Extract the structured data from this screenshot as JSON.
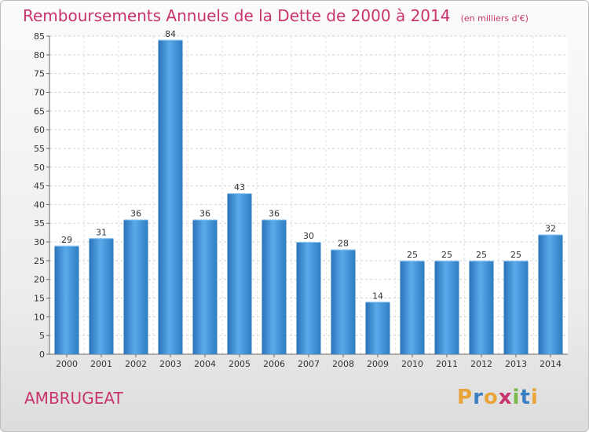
{
  "chart_data": {
    "type": "bar",
    "title": "Remboursements Annuels de la Dette de 2000 à 2014",
    "unit_note": "(en milliers d'€)",
    "categories": [
      "2000",
      "2001",
      "2002",
      "2003",
      "2004",
      "2005",
      "2006",
      "2007",
      "2008",
      "2009",
      "2010",
      "2011",
      "2012",
      "2013",
      "2014"
    ],
    "values": [
      29,
      31,
      36,
      84,
      36,
      43,
      36,
      30,
      28,
      14,
      25,
      25,
      25,
      25,
      32
    ],
    "ylim": [
      0,
      85
    ],
    "yticks": [
      0,
      5,
      10,
      15,
      20,
      25,
      30,
      35,
      40,
      45,
      50,
      55,
      60,
      65,
      70,
      75,
      80,
      85
    ],
    "grid": true,
    "bar_color": "#3d8fd6",
    "xlabel": "",
    "ylabel": ""
  },
  "footer": {
    "commune": "AMBRUGEAT",
    "logo_letters": [
      {
        "char": "P",
        "color": "#e8a33a"
      },
      {
        "char": "r",
        "color": "#3a7fc1"
      },
      {
        "char": "o",
        "color": "#e8a33a"
      },
      {
        "char": "x",
        "color": "#c8336e"
      },
      {
        "char": "i",
        "color": "#7ab648"
      },
      {
        "char": "t",
        "color": "#3a7fc1"
      },
      {
        "char": "i",
        "color": "#e8a33a"
      }
    ]
  },
  "colors": {
    "accent": "#c8336e"
  }
}
